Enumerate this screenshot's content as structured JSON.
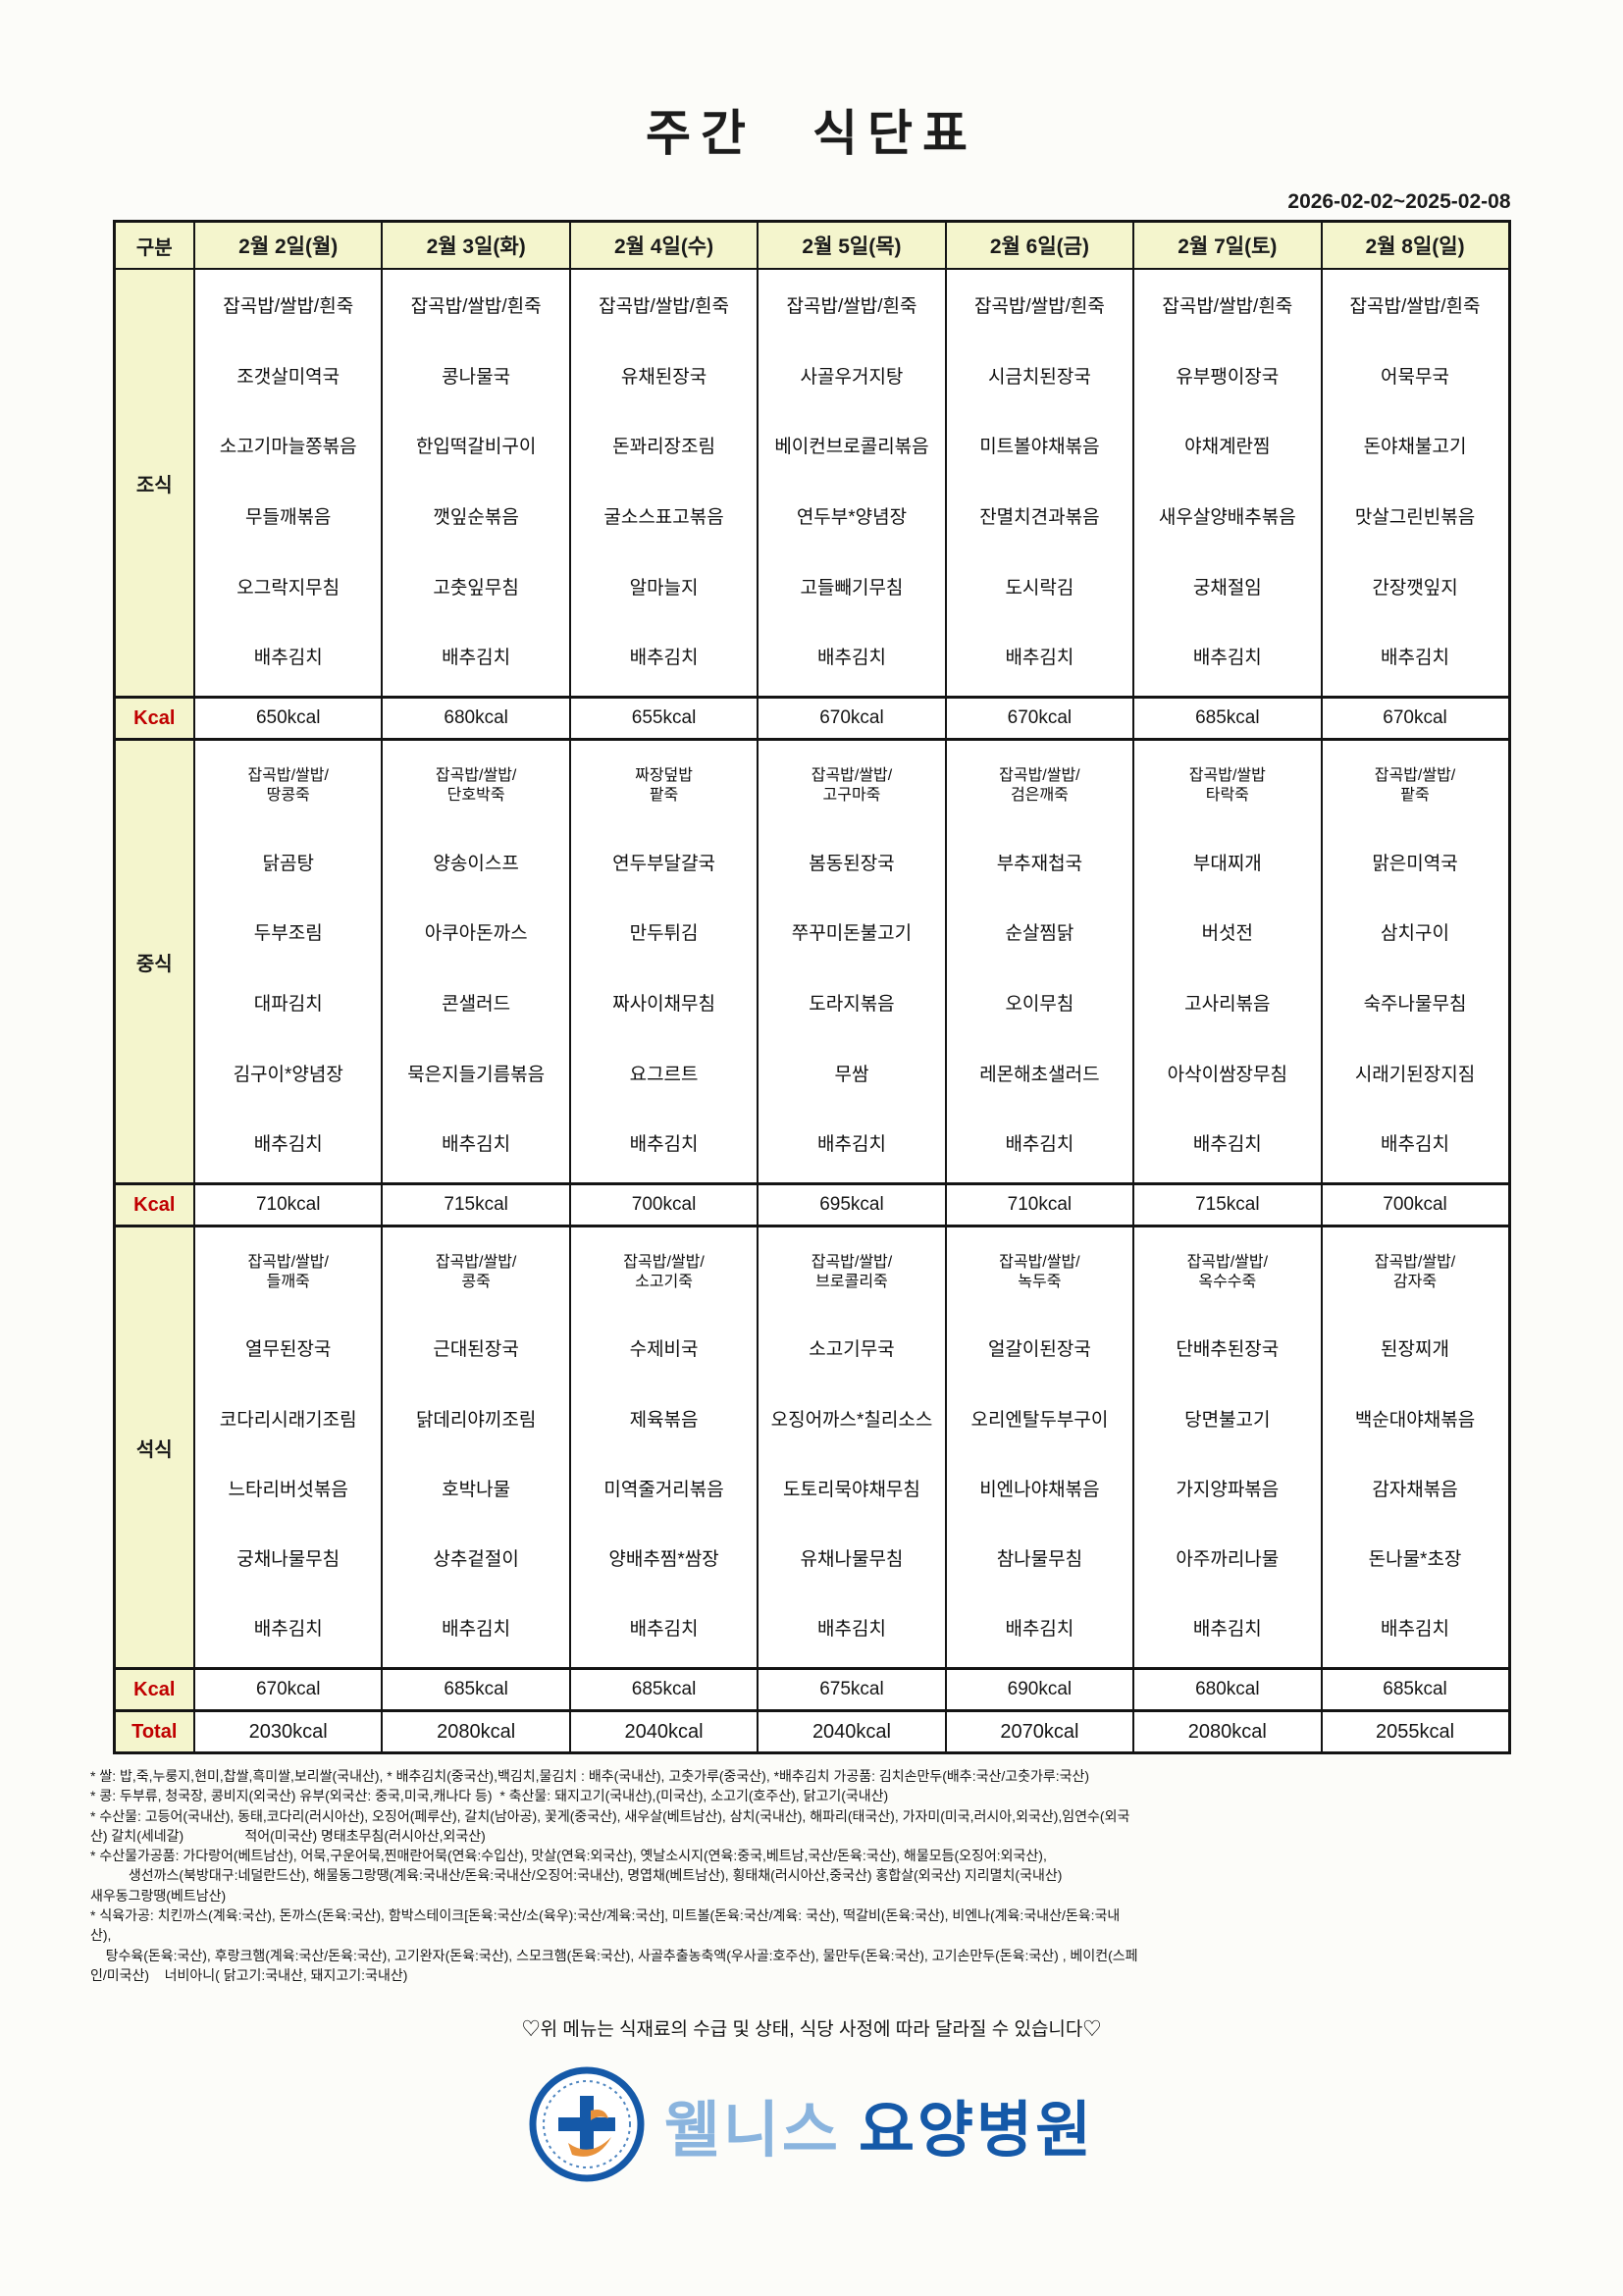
{
  "title": "주간 식단표",
  "date_range": "2026-02-02~2025-02-08",
  "table": {
    "corner_label": "구분",
    "days": [
      "2월 2일(월)",
      "2월 3일(화)",
      "2월 4일(수)",
      "2월 5일(목)",
      "2월 6일(금)",
      "2월 7일(토)",
      "2월 8일(일)"
    ],
    "row_labels": {
      "breakfast": "조식",
      "lunch": "중식",
      "dinner": "석식",
      "kcal": "Kcal",
      "total": "Total"
    },
    "sections": {
      "breakfast": {
        "days": [
          [
            "잡곡밥/쌀밥/흰죽",
            "조갯살미역국",
            "소고기마늘쫑볶음",
            "무들깨볶음",
            "오그락지무침",
            "배추김치"
          ],
          [
            "잡곡밥/쌀밥/흰죽",
            "콩나물국",
            "한입떡갈비구이",
            "깻잎순볶음",
            "고춧잎무침",
            "배추김치"
          ],
          [
            "잡곡밥/쌀밥/흰죽",
            "유채된장국",
            "돈꽈리장조림",
            "굴소스표고볶음",
            "알마늘지",
            "배추김치"
          ],
          [
            "잡곡밥/쌀밥/흰죽",
            "사골우거지탕",
            "베이컨브로콜리볶음",
            "연두부*양념장",
            "고들빼기무침",
            "배추김치"
          ],
          [
            "잡곡밥/쌀밥/흰죽",
            "시금치된장국",
            "미트볼야채볶음",
            "잔멸치견과볶음",
            "도시락김",
            "배추김치"
          ],
          [
            "잡곡밥/쌀밥/흰죽",
            "유부팽이장국",
            "야채계란찜",
            "새우살양배추볶음",
            "궁채절임",
            "배추김치"
          ],
          [
            "잡곡밥/쌀밥/흰죽",
            "어묵무국",
            "돈야채불고기",
            "맛살그린빈볶음",
            "간장깻잎지",
            "배추김치"
          ]
        ]
      },
      "lunch": {
        "days": [
          [
            "잡곡밥/쌀밥/\n땅콩죽",
            "닭곰탕",
            "두부조림",
            "대파김치",
            "김구이*양념장",
            "배추김치"
          ],
          [
            "잡곡밥/쌀밥/\n단호박죽",
            "양송이스프",
            "아쿠아돈까스",
            "콘샐러드",
            "묵은지들기름볶음",
            "배추김치"
          ],
          [
            "짜장덮밥\n팥죽",
            "연두부달걀국",
            "만두튀김",
            "짜사이채무침",
            "요그르트",
            "배추김치"
          ],
          [
            "잡곡밥/쌀밥/\n고구마죽",
            "봄동된장국",
            "쭈꾸미돈불고기",
            "도라지볶음",
            "무쌈",
            "배추김치"
          ],
          [
            "잡곡밥/쌀밥/\n검은깨죽",
            "부추재첩국",
            "순살찜닭",
            "오이무침",
            "레몬해초샐러드",
            "배추김치"
          ],
          [
            "잡곡밥/쌀밥\n타락죽",
            "부대찌개",
            "버섯전",
            "고사리볶음",
            "아삭이쌈장무침",
            "배추김치"
          ],
          [
            "잡곡밥/쌀밥/\n팥죽",
            "맑은미역국",
            "삼치구이",
            "숙주나물무침",
            "시래기된장지짐",
            "배추김치"
          ]
        ]
      },
      "dinner": {
        "days": [
          [
            "잡곡밥/쌀밥/\n들깨죽",
            "열무된장국",
            "코다리시래기조림",
            "느타리버섯볶음",
            "궁채나물무침",
            "배추김치"
          ],
          [
            "잡곡밥/쌀밥/\n콩죽",
            "근대된장국",
            "닭데리야끼조림",
            "호박나물",
            "상추겉절이",
            "배추김치"
          ],
          [
            "잡곡밥/쌀밥/\n소고기죽",
            "수제비국",
            "제육볶음",
            "미역줄거리볶음",
            "양배추찜*쌈장",
            "배추김치"
          ],
          [
            "잡곡밥/쌀밥/\n브로콜리죽",
            "소고기무국",
            "오징어까스*칠리소스",
            "도토리묵야채무침",
            "유채나물무침",
            "배추김치"
          ],
          [
            "잡곡밥/쌀밥/\n녹두죽",
            "얼갈이된장국",
            "오리엔탈두부구이",
            "비엔나야채볶음",
            "참나물무침",
            "배추김치"
          ],
          [
            "잡곡밥/쌀밥/\n옥수수죽",
            "단배추된장국",
            "당면불고기",
            "가지양파볶음",
            "아주까리나물",
            "배추김치"
          ],
          [
            "잡곡밥/쌀밥/\n감자죽",
            "된장찌개",
            "백순대야채볶음",
            "감자채볶음",
            "돈나물*초장",
            "배추김치"
          ]
        ]
      }
    },
    "kcal": {
      "breakfast": [
        "650kcal",
        "680kcal",
        "655kcal",
        "670kcal",
        "670kcal",
        "685kcal",
        "670kcal"
      ],
      "lunch": [
        "710kcal",
        "715kcal",
        "700kcal",
        "695kcal",
        "710kcal",
        "715kcal",
        "700kcal"
      ],
      "dinner": [
        "670kcal",
        "685kcal",
        "685kcal",
        "675kcal",
        "690kcal",
        "680kcal",
        "685kcal"
      ],
      "total": [
        "2030kcal",
        "2080kcal",
        "2040kcal",
        "2040kcal",
        "2070kcal",
        "2080kcal",
        "2055kcal"
      ]
    }
  },
  "footnotes": "* 쌀: 밥,죽,누룽지,현미,찹쌀,흑미쌀,보리쌀(국내산), * 배추김치(중국산),백김치,물김치 : 배추(국내산), 고춧가루(중국산), *배추김치 가공품: 김치손만두(배추:국산/고춧가루:국산)\n* 콩: 두부류, 청국장, 콩비지(외국산) 유부(외국산: 중국,미국,캐나다 등)  * 축산물: 돼지고기(국내산),(미국산), 소고기(호주산), 닭고기(국내산)\n* 수산물: 고등어(국내산), 동태,코다리(러시아산), 오징어(페루산), 갈치(남아공), 꽃게(중국산), 새우살(베트남산), 삼치(국내산), 해파리(태국산), 가자미(미국,러시아,외국산),임연수(외국\n산) 갈치(세네갈)                적어(미국산) 명태초무침(러시아산,외국산)\n* 수산물가공품: 가다랑어(베트남산), 어묵,구운어묵,찐매란어묵(연육:수입산), 맛살(연육:외국산), 옛날소시지(연육:중국,베트남,국산/돈육:국산), 해물모듬(오징어:외국산),\n          생선까스(북방대구:네덜란드산), 해물동그랑땡(계육:국내산/돈육:국내산/오징어:국내산), 명엽채(베트남산), 횡태채(러시아산,중국산) 홍합살(외국산) 지리멸치(국내산)\n새우동그랑땡(베트남산)\n* 식육가공: 치킨까스(계육:국산), 돈까스(돈육:국산), 함박스테이크[돈육:국산/소(육우):국산/계육:국산], 미트볼(돈육:국산/계육: 국산), 떡갈비(돈육:국산), 비엔나(계육:국내산/돈육:국내\n산),\n    탕수육(돈육:국산), 후랑크햄(계육:국산/돈육:국산), 고기완자(돈육:국산), 스모크햄(돈육:국산), 사골추출농축액(우사골:호주산), 물만두(돈육:국산), 고기손만두(돈육:국산) , 베이컨(스페\n인/미국산)    너비아니( 닭고기:국내산, 돼지고기:국내산)",
  "notice": "♡위 메뉴는 식재료의 수급 및 상태, 식당 사정에 따라 달라질 수 있습니다♡",
  "logo": {
    "name_light": "웰니스",
    "name_dark": "요양병원"
  },
  "colors": {
    "header_bg": "#f4f5cd",
    "accent_red": "#c00000",
    "logo_light_blue": "#8ab4de",
    "logo_dark_blue": "#1559a8",
    "logo_orange": "#e8913a"
  }
}
